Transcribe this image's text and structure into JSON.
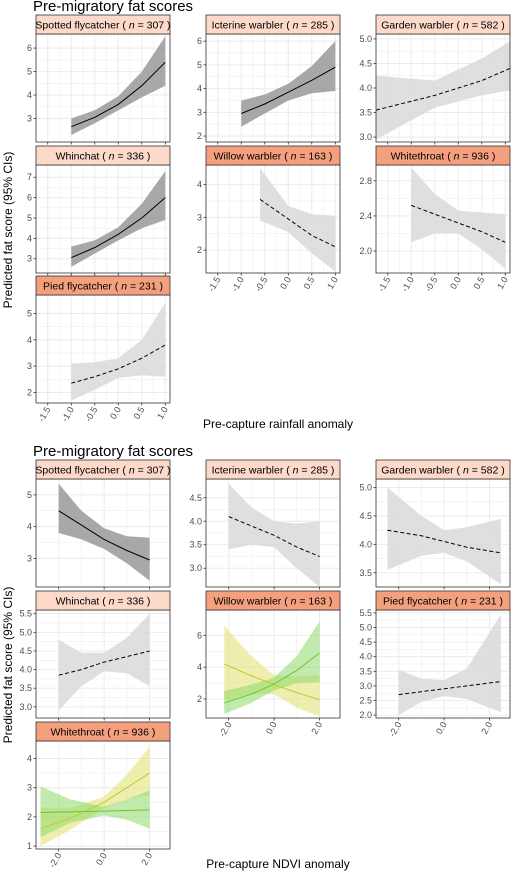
{
  "colors": {
    "strip_light": "#fcd9c9",
    "strip_dark": "#f4a07e",
    "panel_border": "#333333",
    "grid": "#ebebeb",
    "ribbon_sig": "#999999",
    "ribbon_ns": "#d9d9d9",
    "line": "#000000",
    "green": "#66c733",
    "yellow": "#c4c733",
    "green_ribbon": "#8ed867",
    "yellow_ribbon": "#e0e26e"
  },
  "sections": [
    {
      "title": "Pre-migratory fat scores",
      "xlabel": "Pre-capture rainfall anomaly",
      "ylabel": "Predicted fat score (95% CIs)"
    },
    {
      "title": "Pre-migratory fat scores",
      "xlabel": "Pre-capture NDVI anomaly",
      "ylabel": "Predicted fat score (95% CIs)"
    }
  ],
  "chart_data": [
    {
      "type": "line",
      "title": "Pre-migratory fat scores",
      "xlabel": "Pre-capture rainfall anomaly",
      "ylabel": "Predicted fat score (95% CIs)",
      "grid": true,
      "xlim": [
        -1.75,
        1.1
      ],
      "xticks": [
        -1.5,
        -1.0,
        -0.5,
        0.0,
        0.5,
        1.0
      ],
      "xtick_labels": [
        "-1.5",
        "-1.0",
        "-0.5",
        "0.0",
        "0.5",
        "1.0"
      ],
      "panels": [
        {
          "species": "Spotted flycatcher",
          "n_label": "n",
          "n": "307",
          "strip_shade": "light",
          "ylim": [
            2.0,
            6.6
          ],
          "yticks": [
            3,
            4,
            5,
            6
          ],
          "series": [
            {
              "style": "solid",
              "ribbon": "sig",
              "x": [
                -1.0,
                -0.5,
                0.0,
                0.5,
                1.0
              ],
              "y": [
                2.65,
                3.05,
                3.6,
                4.4,
                5.4
              ],
              "lower": [
                2.3,
                2.8,
                3.35,
                3.9,
                4.4
              ],
              "upper": [
                3.0,
                3.35,
                3.95,
                5.0,
                6.5
              ]
            }
          ]
        },
        {
          "species": "Icterine warbler",
          "n_label": "n",
          "n": "285",
          "strip_shade": "light",
          "ylim": [
            1.75,
            6.3
          ],
          "yticks": [
            2,
            3,
            4,
            5,
            6
          ],
          "series": [
            {
              "style": "solid",
              "ribbon": "sig",
              "x": [
                -1.0,
                -0.5,
                0.0,
                0.5,
                1.0
              ],
              "y": [
                2.95,
                3.35,
                3.85,
                4.35,
                4.9
              ],
              "lower": [
                2.4,
                2.95,
                3.5,
                3.8,
                3.9
              ],
              "upper": [
                3.5,
                3.75,
                4.2,
                4.95,
                6.0
              ]
            }
          ]
        },
        {
          "species": "Garden warbler",
          "n_label": "n",
          "n": "582",
          "strip_shade": "light",
          "ylim": [
            2.9,
            5.1
          ],
          "yticks": [
            3.0,
            3.5,
            4.0,
            4.5,
            5.0
          ],
          "ytick_decimals": 1,
          "series": [
            {
              "style": "dashed",
              "ribbon": "ns",
              "x": [
                -1.75,
                -0.5,
                0.5,
                1.1
              ],
              "y": [
                3.55,
                3.85,
                4.15,
                4.4
              ],
              "lower": [
                2.95,
                3.6,
                3.85,
                3.95
              ],
              "upper": [
                4.25,
                4.15,
                4.6,
                4.95
              ]
            }
          ]
        },
        {
          "species": "Whinchat",
          "n_label": "n",
          "n": "336",
          "strip_shade": "light",
          "ylim": [
            2.3,
            7.6
          ],
          "yticks": [
            3,
            4,
            5,
            6,
            7
          ],
          "series": [
            {
              "style": "solid",
              "ribbon": "sig",
              "x": [
                -1.0,
                -0.5,
                0.0,
                0.5,
                1.0
              ],
              "y": [
                3.05,
                3.55,
                4.2,
                5.0,
                6.0
              ],
              "lower": [
                2.6,
                3.25,
                3.9,
                4.5,
                4.9
              ],
              "upper": [
                3.6,
                3.9,
                4.55,
                5.7,
                7.3
              ]
            }
          ]
        },
        {
          "species": "Willow warbler",
          "n_label": "n",
          "n": "163",
          "strip_shade": "dark",
          "ylim": [
            1.3,
            4.6
          ],
          "yticks": [
            2,
            3,
            4
          ],
          "series": [
            {
              "style": "dashed",
              "ribbon": "ns",
              "x": [
                -0.6,
                0.0,
                0.5,
                1.0
              ],
              "y": [
                3.55,
                2.95,
                2.45,
                2.1
              ],
              "lower": [
                2.9,
                2.55,
                1.9,
                1.35
              ],
              "upper": [
                4.5,
                3.35,
                3.1,
                3.05
              ]
            }
          ]
        },
        {
          "species": "Whitethroat",
          "n_label": "n",
          "n": "936",
          "strip_shade": "dark",
          "ylim": [
            1.75,
            2.98
          ],
          "yticks": [
            2.0,
            2.4,
            2.8
          ],
          "ytick_decimals": 1,
          "series": [
            {
              "style": "dashed",
              "ribbon": "ns",
              "x": [
                -1.0,
                -0.5,
                0.0,
                0.5,
                1.0
              ],
              "y": [
                2.52,
                2.42,
                2.32,
                2.22,
                2.1
              ],
              "lower": [
                2.1,
                2.2,
                2.2,
                2.02,
                1.8
              ],
              "upper": [
                2.95,
                2.65,
                2.46,
                2.44,
                2.42
              ]
            }
          ]
        },
        {
          "species": "Pied flycatcher",
          "n_label": "n",
          "n": "231",
          "strip_shade": "dark",
          "ylim": [
            1.6,
            5.7
          ],
          "yticks": [
            2,
            3,
            4,
            5
          ],
          "series": [
            {
              "style": "dashed",
              "ribbon": "ns",
              "x": [
                -1.0,
                -0.5,
                0.0,
                0.5,
                1.0
              ],
              "y": [
                2.35,
                2.6,
                2.9,
                3.3,
                3.8
              ],
              "lower": [
                1.7,
                2.1,
                2.55,
                2.65,
                2.6
              ],
              "upper": [
                3.1,
                3.15,
                3.3,
                4.0,
                5.4
              ]
            }
          ]
        }
      ]
    },
    {
      "type": "line",
      "title": "Pre-migratory fat scores",
      "xlabel": "Pre-capture NDVI anomaly",
      "ylabel": "Predicted fat score (95% CIs)",
      "grid": true,
      "xlim": [
        -3.0,
        2.9
      ],
      "xticks": [
        -2.0,
        0.0,
        2.0
      ],
      "xtick_labels": [
        "-2.0",
        "0.0",
        "2.0"
      ],
      "panels": [
        {
          "species": "Spotted flycatcher",
          "n_label": "n",
          "n": "307",
          "strip_shade": "light",
          "ylim": [
            2.1,
            5.5
          ],
          "yticks": [
            3,
            4,
            5
          ],
          "series": [
            {
              "style": "solid",
              "ribbon": "sig",
              "x": [
                -2.0,
                -1.0,
                0.0,
                1.0,
                2.0
              ],
              "y": [
                4.5,
                4.05,
                3.6,
                3.25,
                2.95
              ],
              "lower": [
                3.8,
                3.6,
                3.3,
                2.85,
                2.3
              ],
              "upper": [
                5.35,
                4.5,
                3.95,
                3.7,
                3.65
              ]
            }
          ]
        },
        {
          "species": "Icterine warbler",
          "n_label": "n",
          "n": "285",
          "strip_shade": "light",
          "ylim": [
            2.6,
            4.9
          ],
          "yticks": [
            3.0,
            3.5,
            4.0,
            4.5
          ],
          "ytick_decimals": 1,
          "series": [
            {
              "style": "dashed",
              "ribbon": "ns",
              "x": [
                -2.0,
                -1.0,
                0.0,
                1.0,
                2.0
              ],
              "y": [
                4.1,
                3.9,
                3.7,
                3.45,
                3.25
              ],
              "lower": [
                3.4,
                3.5,
                3.45,
                3.0,
                2.6
              ],
              "upper": [
                4.8,
                4.3,
                4.0,
                3.95,
                4.0
              ]
            }
          ]
        },
        {
          "species": "Garden warbler",
          "n_label": "n",
          "n": "582",
          "strip_shade": "light",
          "ylim": [
            3.25,
            5.15
          ],
          "yticks": [
            3.5,
            4.0,
            4.5,
            5.0
          ],
          "ytick_decimals": 1,
          "series": [
            {
              "style": "dashed",
              "ribbon": "ns",
              "x": [
                -2.5,
                -1.0,
                0.0,
                1.0,
                2.5
              ],
              "y": [
                4.25,
                4.15,
                4.05,
                3.95,
                3.85
              ],
              "lower": [
                3.55,
                3.8,
                3.85,
                3.7,
                3.3
              ],
              "upper": [
                5.0,
                4.5,
                4.25,
                4.3,
                4.45
              ]
            }
          ]
        },
        {
          "species": "Whinchat",
          "n_label": "n",
          "n": "336",
          "strip_shade": "light",
          "ylim": [
            2.7,
            5.6
          ],
          "yticks": [
            3.0,
            3.5,
            4.0,
            4.5,
            5.0,
            5.5
          ],
          "ytick_decimals": 1,
          "series": [
            {
              "style": "dashed",
              "ribbon": "ns",
              "x": [
                -2.0,
                -1.0,
                0.0,
                1.0,
                2.0
              ],
              "y": [
                3.85,
                4.0,
                4.2,
                4.35,
                4.5
              ],
              "lower": [
                2.9,
                3.55,
                3.95,
                3.9,
                3.55
              ],
              "upper": [
                4.8,
                4.45,
                4.45,
                4.85,
                5.5
              ]
            }
          ]
        },
        {
          "species": "Willow warbler",
          "n_label": "n",
          "n": "163",
          "strip_shade": "dark",
          "ylim": [
            0.8,
            7.6
          ],
          "yticks": [
            2,
            4,
            6
          ],
          "series": [
            {
              "style": "solid",
              "ribbon": "yellow",
              "x": [
                -2.2,
                -1.0,
                0.0,
                1.0,
                2.0
              ],
              "y": [
                4.2,
                3.45,
                2.9,
                2.4,
                1.95
              ],
              "lower": [
                1.9,
                2.3,
                2.3,
                1.45,
                0.9
              ],
              "upper": [
                6.6,
                4.7,
                3.5,
                3.4,
                3.5
              ]
            },
            {
              "style": "solid",
              "ribbon": "green",
              "x": [
                -2.2,
                -1.0,
                0.0,
                1.0,
                2.0
              ],
              "y": [
                1.75,
                2.3,
                2.95,
                3.8,
                4.9
              ],
              "lower": [
                1.05,
                1.75,
                2.55,
                3.0,
                3.05
              ],
              "upper": [
                2.5,
                2.9,
                3.35,
                4.7,
                6.9
              ]
            }
          ]
        },
        {
          "species": "Pied flycatcher",
          "n_label": "n",
          "n": "231",
          "strip_shade": "dark",
          "ylim": [
            1.9,
            5.6
          ],
          "yticks": [
            2.0,
            2.5,
            3.0,
            3.5,
            4.0,
            4.5,
            5.0,
            5.5
          ],
          "ytick_decimals": 1,
          "series": [
            {
              "style": "dashed",
              "ribbon": "ns",
              "x": [
                -2.0,
                -1.0,
                0.0,
                1.0,
                2.5
              ],
              "y": [
                2.7,
                2.8,
                2.9,
                3.0,
                3.15
              ],
              "lower": [
                2.0,
                2.45,
                2.65,
                2.55,
                2.1
              ],
              "upper": [
                3.55,
                3.25,
                3.2,
                3.6,
                5.45
              ]
            }
          ]
        },
        {
          "species": "Whitethroat",
          "n_label": "n",
          "n": "936",
          "strip_shade": "dark",
          "ylim": [
            0.9,
            4.6
          ],
          "yticks": [
            1,
            2,
            3,
            4
          ],
          "series": [
            {
              "style": "solid",
              "ribbon": "yellow",
              "x": [
                -2.8,
                -1.5,
                0.0,
                1.0,
                2.0
              ],
              "y": [
                1.6,
                1.95,
                2.5,
                3.0,
                3.5
              ],
              "lower": [
                1.0,
                1.55,
                2.3,
                2.6,
                2.75
              ],
              "upper": [
                2.3,
                2.3,
                2.7,
                3.45,
                4.4
              ]
            },
            {
              "style": "solid",
              "ribbon": "green",
              "x": [
                -2.8,
                -1.5,
                0.0,
                1.0,
                2.0
              ],
              "y": [
                2.15,
                2.17,
                2.2,
                2.22,
                2.24
              ],
              "lower": [
                1.3,
                1.8,
                2.05,
                1.9,
                1.6
              ],
              "upper": [
                3.05,
                2.6,
                2.35,
                2.6,
                2.9
              ]
            }
          ]
        }
      ]
    }
  ]
}
